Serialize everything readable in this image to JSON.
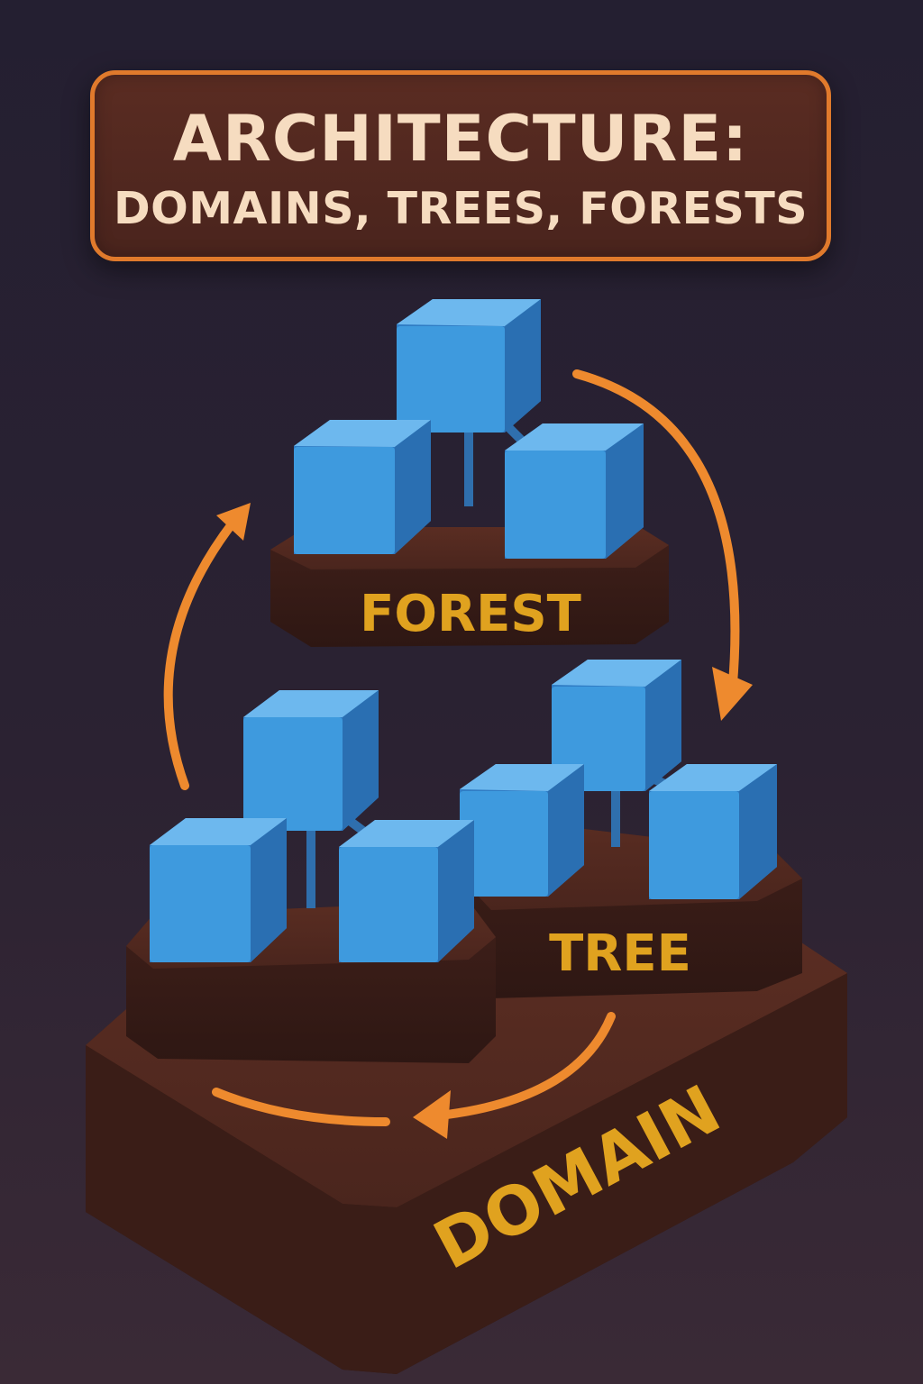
{
  "title": {
    "line1": "ARCHITECTURE:",
    "line2": "DOMAINS, TREES, FORESTS"
  },
  "labels": {
    "forest": "FOREST",
    "tree": "TREE",
    "domain": "DOMAIN"
  },
  "colors": {
    "background": "#2a2233",
    "cube": "#3b8fd6",
    "platform": "#4a241c",
    "label": "#e0a21f",
    "arrow": "#ee8a2e",
    "title_border": "#e07a2c"
  }
}
